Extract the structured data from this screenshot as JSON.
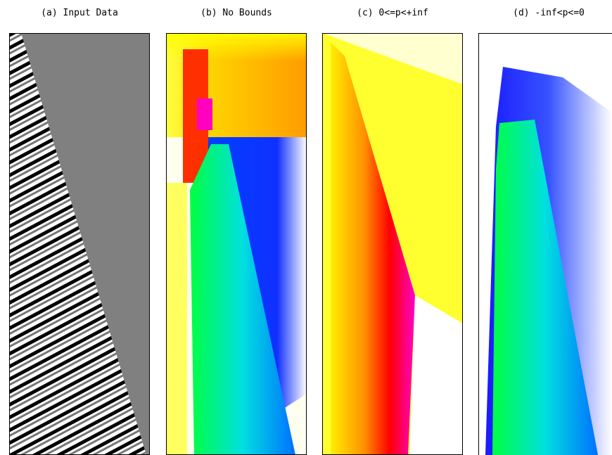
{
  "panels": [
    {
      "title": "(a) Input Data"
    },
    {
      "title": "(b) No Bounds"
    },
    {
      "title": "(c) 0<=p<+inf"
    },
    {
      "title": "(d) -inf<p<=0"
    }
  ]
}
